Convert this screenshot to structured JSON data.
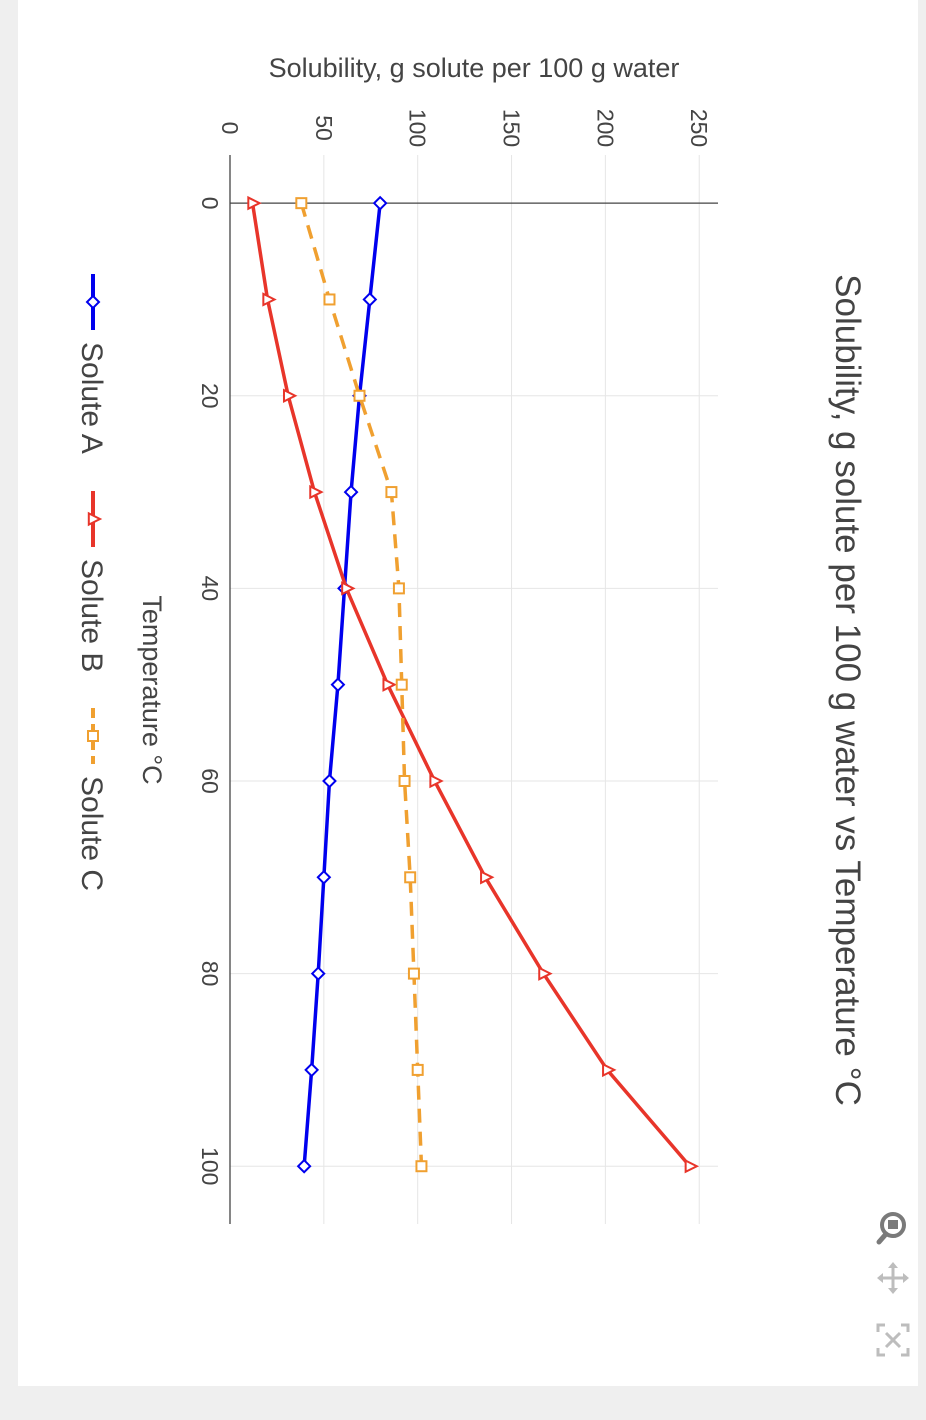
{
  "chart_data": {
    "type": "line",
    "title": "Solubility, g solute per 100 g water vs Temperature °C",
    "xlabel": "Temperature °C",
    "ylabel": "Solubility, g solute per 100 g water",
    "xlim": [
      -5,
      106
    ],
    "ylim": [
      0,
      260
    ],
    "xticks": [
      0,
      20,
      40,
      60,
      80,
      100
    ],
    "yticks": [
      0,
      50,
      100,
      150,
      200,
      250
    ],
    "x": [
      0,
      10,
      20,
      30,
      40,
      50,
      60,
      70,
      80,
      90,
      100
    ],
    "grid": true,
    "legend_position": "bottom",
    "orientation": "rotated",
    "series": [
      {
        "name": "Solute A",
        "color": "#0000ee",
        "dash": "solid",
        "marker": "diamond-open",
        "values": [
          80,
          74.5,
          69,
          64.5,
          61,
          57.5,
          53,
          50,
          47,
          43.5,
          39.5
        ]
      },
      {
        "name": "Solute B",
        "color": "#e8352a",
        "dash": "solid",
        "marker": "triangle-open",
        "values": [
          12,
          20,
          31,
          45,
          62,
          84,
          109,
          136,
          167,
          201,
          245
        ]
      },
      {
        "name": "Solute C",
        "color": "#f0a030",
        "dash": "dash",
        "marker": "square-open",
        "values": [
          38,
          53,
          69,
          86,
          90,
          91.5,
          93,
          96,
          98,
          100,
          102
        ]
      }
    ]
  },
  "modebar": {
    "icons": [
      "zoom-icon",
      "pan-icon",
      "autoscale-icon"
    ]
  }
}
